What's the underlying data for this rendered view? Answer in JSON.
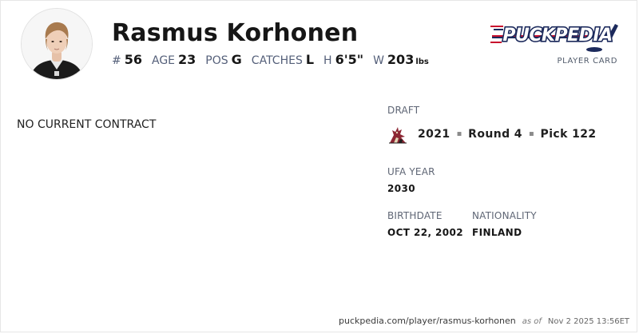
{
  "player": {
    "name": "Rasmus Korhonen",
    "stats": [
      {
        "label": "#",
        "value": "56"
      },
      {
        "label": "AGE",
        "value": "23"
      },
      {
        "label": "POS",
        "value": "G"
      },
      {
        "label": "CATCHES",
        "value": "L"
      },
      {
        "label": "H",
        "value": "6'5\""
      },
      {
        "label": "W",
        "value": "203",
        "unit": "lbs"
      }
    ]
  },
  "brand": {
    "logo_text": "PUCKPEDIA",
    "caption": "PLAYER CARD",
    "colors": {
      "navy": "#1c2a5c",
      "red": "#c8102e"
    }
  },
  "contract": {
    "status": "NO CURRENT CONTRACT"
  },
  "draft": {
    "label": "DRAFT",
    "year": "2021",
    "round": "Round 4",
    "pick": "Pick 122",
    "separator": "◾",
    "team_icon": "coyotes-logo-icon"
  },
  "ufa": {
    "label": "UFA YEAR",
    "value": "2030"
  },
  "birthdate": {
    "label": "BIRTHDATE",
    "value": "OCT 22, 2002"
  },
  "nationality": {
    "label": "NATIONALITY",
    "value": "FINLAND"
  },
  "footer": {
    "url": "puckpedia.com/player/rasmus-korhonen",
    "as_of_label": "as of",
    "timestamp": "Nov 2 2025 13:56ET"
  }
}
